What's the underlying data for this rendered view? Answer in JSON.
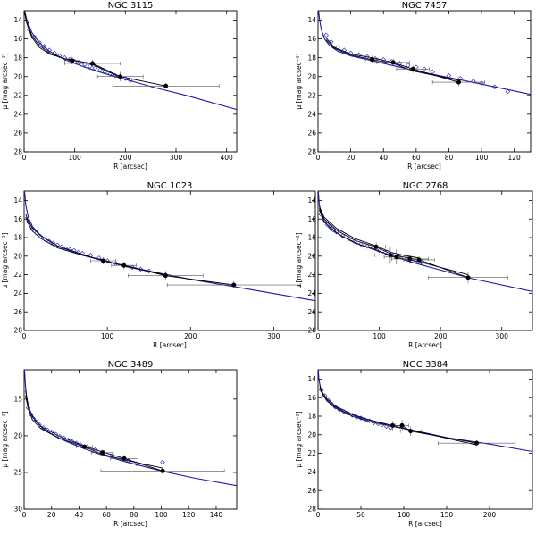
{
  "chart_data": [
    {
      "type": "scatter",
      "title": "NGC 3115",
      "xlabel": "R [arcsec]",
      "ylabel": "μ [mag arcsec⁻²]",
      "xlim": [
        0,
        420
      ],
      "ylim": [
        28,
        13
      ],
      "xticks": [
        0,
        100,
        200,
        300,
        400
      ],
      "yticks": [
        14,
        16,
        18,
        20,
        22,
        24,
        26,
        28
      ],
      "model_curve": {
        "x": [
          1,
          5,
          15,
          30,
          50,
          80,
          120,
          160,
          200,
          260,
          320,
          420
        ],
        "y": [
          13.0,
          13.9,
          15.3,
          16.4,
          17.3,
          18.2,
          19.0,
          19.7,
          20.3,
          21.2,
          22.0,
          23.5
        ]
      },
      "fit_lines": [
        {
          "x": [
            1,
            5,
            15,
            30,
            50,
            80,
            95,
            135,
            190,
            280
          ],
          "y": [
            13.0,
            14.2,
            15.6,
            16.7,
            17.5,
            18.1,
            18.3,
            18.6,
            20.0,
            21.0
          ]
        },
        {
          "x": [
            1,
            5,
            15,
            30,
            50,
            80,
            95,
            135,
            190
          ],
          "y": [
            13.2,
            14.3,
            15.8,
            16.9,
            17.6,
            18.1,
            18.2,
            18.7,
            20.1
          ]
        }
      ],
      "open_points": {
        "x": [
          10,
          20,
          30,
          40,
          50,
          60,
          70,
          80,
          90,
          100,
          110,
          120,
          130,
          140,
          150,
          160,
          170,
          180,
          190,
          200,
          210
        ],
        "y": [
          15.0,
          15.8,
          16.4,
          16.8,
          17.2,
          17.5,
          17.8,
          18.0,
          18.2,
          18.4,
          18.5,
          18.7,
          18.9,
          19.1,
          19.3,
          19.5,
          19.7,
          19.9,
          20.0,
          20.2,
          20.4
        ]
      },
      "filled_points": [
        {
          "x": 95,
          "y": 18.3,
          "xerr": 15,
          "yerr": 0.4
        },
        {
          "x": 135,
          "y": 18.6,
          "xerr": 55,
          "yerr": 0.4
        },
        {
          "x": 190,
          "y": 20.0,
          "xerr": 45,
          "yerr": 0.5
        },
        {
          "x": 280,
          "y": 21.0,
          "xerr": 105,
          "yerr": 0.3
        }
      ]
    },
    {
      "type": "scatter",
      "title": "NGC 7457",
      "xlabel": "R [arcsec]",
      "ylabel": "μ [mag arcsec⁻²]",
      "xlim": [
        0,
        130
      ],
      "ylim": [
        28,
        13
      ],
      "xticks": [
        0,
        20,
        40,
        60,
        80,
        100,
        120
      ],
      "yticks": [
        14,
        16,
        18,
        20,
        22,
        24,
        26,
        28
      ],
      "model_curve": {
        "x": [
          0.3,
          1,
          2,
          4,
          7,
          12,
          20,
          30,
          45,
          60,
          80,
          100,
          130
        ],
        "y": [
          13.0,
          14.0,
          15.0,
          16.0,
          16.7,
          17.3,
          17.8,
          18.2,
          18.8,
          19.4,
          20.1,
          20.8,
          21.9
        ]
      },
      "fit_lines": [
        {
          "x": [
            5,
            10,
            20,
            33,
            46,
            58,
            86
          ],
          "y": [
            15.9,
            16.9,
            17.6,
            18.0,
            18.5,
            19.2,
            20.6
          ]
        },
        {
          "x": [
            5,
            10,
            20,
            33,
            46,
            58,
            86
          ],
          "y": [
            16.1,
            17.0,
            17.7,
            18.2,
            18.6,
            19.4,
            20.4
          ]
        }
      ],
      "open_points": {
        "x": [
          5,
          8,
          12,
          16,
          20,
          25,
          30,
          35,
          40,
          45,
          50,
          55,
          60,
          65,
          70,
          80,
          87,
          95,
          100,
          108,
          116
        ],
        "y": [
          15.6,
          16.3,
          16.9,
          17.2,
          17.5,
          17.7,
          17.9,
          18.1,
          18.2,
          18.4,
          18.6,
          18.8,
          19.0,
          19.2,
          19.5,
          19.9,
          20.2,
          20.5,
          20.7,
          21.1,
          21.6
        ]
      },
      "filled_points": [
        {
          "x": 33,
          "y": 18.2,
          "xerr": 4,
          "yerr": 0.4
        },
        {
          "x": 46,
          "y": 18.5,
          "xerr": 10,
          "yerr": 0.4
        },
        {
          "x": 58,
          "y": 19.2,
          "xerr": 10,
          "yerr": 0.4
        },
        {
          "x": 86,
          "y": 20.6,
          "xerr": 16,
          "yerr": 0.4
        }
      ]
    },
    {
      "type": "scatter",
      "title": "NGC 1023",
      "xlabel": "R [arcsec]",
      "ylabel": "μ [mag arcsec⁻²]",
      "xlim": [
        0,
        350
      ],
      "ylim": [
        28,
        13
      ],
      "xticks": [
        0,
        100,
        200,
        300
      ],
      "yticks": [
        14,
        16,
        18,
        20,
        22,
        24,
        26,
        28
      ],
      "model_curve": {
        "x": [
          0.5,
          2,
          5,
          10,
          20,
          40,
          70,
          100,
          150,
          200,
          260,
          350
        ],
        "y": [
          13.0,
          14.5,
          15.8,
          16.8,
          17.8,
          18.9,
          19.9,
          20.6,
          21.6,
          22.5,
          23.4,
          24.8
        ]
      },
      "fit_lines": [
        {
          "x": [
            2,
            5,
            10,
            20,
            40,
            70,
            95,
            120,
            170,
            252
          ],
          "y": [
            15.5,
            16.2,
            17.0,
            17.8,
            18.9,
            19.8,
            20.5,
            21.0,
            22.1,
            23.1
          ]
        },
        {
          "x": [
            2,
            5,
            10,
            20,
            40,
            70,
            95,
            120,
            170
          ],
          "y": [
            15.8,
            16.5,
            17.3,
            18.1,
            19.1,
            19.9,
            20.4,
            21.1,
            22.0
          ]
        }
      ],
      "open_points": {
        "x": [
          5,
          10,
          15,
          20,
          25,
          30,
          35,
          40,
          45,
          50,
          55,
          60,
          65,
          70,
          80,
          90,
          100,
          110,
          120,
          130,
          140,
          150,
          170
        ],
        "y": [
          16.3,
          17.1,
          17.5,
          17.9,
          18.2,
          18.4,
          18.6,
          18.8,
          19.0,
          19.2,
          19.3,
          19.4,
          19.6,
          19.7,
          19.9,
          20.2,
          20.5,
          20.8,
          21.0,
          21.2,
          21.4,
          21.6,
          22.0
        ]
      },
      "filled_points": [
        {
          "x": 95,
          "y": 20.5,
          "xerr": 15,
          "yerr": 0.4
        },
        {
          "x": 120,
          "y": 21.0,
          "xerr": 15,
          "yerr": 0.4
        },
        {
          "x": 170,
          "y": 22.1,
          "xerr": 45,
          "yerr": 0.5
        },
        {
          "x": 252,
          "y": 23.1,
          "xerr": 80,
          "yerr": 0.4
        }
      ]
    },
    {
      "type": "scatter",
      "title": "NGC 2768",
      "xlabel": "R [arcsec]",
      "ylabel": "μ [mag arcsec⁻²]",
      "xlim": [
        0,
        350
      ],
      "ylim": [
        28,
        13
      ],
      "xticks": [
        0,
        100,
        200,
        300
      ],
      "yticks": [
        14,
        16,
        18,
        20,
        22,
        24,
        26,
        28
      ],
      "model_curve": {
        "x": [
          0.5,
          2,
          5,
          10,
          20,
          40,
          70,
          100,
          150,
          200,
          250,
          350
        ],
        "y": [
          13.0,
          14.4,
          15.4,
          16.2,
          17.0,
          17.9,
          18.8,
          19.5,
          20.6,
          21.5,
          22.4,
          23.8
        ]
      },
      "fit_lines": [
        {
          "x": [
            2,
            10,
            30,
            60,
            95,
            120,
            140,
            165,
            245
          ],
          "y": [
            14.8,
            16.0,
            17.2,
            18.3,
            19.0,
            19.8,
            20.1,
            20.4,
            22.3
          ]
        },
        {
          "x": [
            2,
            10,
            30,
            60,
            95,
            120,
            140,
            165,
            245
          ],
          "y": [
            15.0,
            16.3,
            17.5,
            18.6,
            19.3,
            20.0,
            20.3,
            20.6,
            22.0
          ]
        },
        {
          "x": [
            2,
            10,
            30,
            60,
            95,
            120,
            140,
            165
          ],
          "y": [
            14.6,
            15.8,
            17.0,
            18.1,
            18.9,
            19.6,
            19.9,
            20.2
          ]
        }
      ],
      "open_points": {
        "x": [
          5,
          10,
          15,
          20,
          25,
          30,
          40,
          50,
          60,
          70,
          80,
          90,
          100,
          110,
          120,
          130,
          140,
          150,
          160,
          170
        ],
        "y": [
          15.5,
          16.2,
          16.6,
          16.9,
          17.2,
          17.4,
          17.8,
          18.1,
          18.4,
          18.7,
          18.9,
          19.1,
          19.4,
          19.6,
          19.8,
          20.0,
          20.2,
          20.4,
          20.5,
          20.7
        ]
      },
      "filled_points": [
        {
          "x": 95,
          "y": 19.0,
          "xerr": 15,
          "yerr": 0.5
        },
        {
          "x": 118,
          "y": 19.9,
          "xerr": 25,
          "yerr": 0.9
        },
        {
          "x": 128,
          "y": 20.1,
          "xerr": 20,
          "yerr": 0.8
        },
        {
          "x": 150,
          "y": 20.3,
          "xerr": 30,
          "yerr": 0.5
        },
        {
          "x": 165,
          "y": 20.4,
          "xerr": 25,
          "yerr": 0.4
        },
        {
          "x": 245,
          "y": 22.3,
          "xerr": 65,
          "yerr": 0.6
        }
      ]
    },
    {
      "type": "scatter",
      "title": "NGC 3489",
      "xlabel": "R [arcsec]",
      "ylabel": "μ [mag arcsec⁻²]",
      "xlim": [
        0,
        155
      ],
      "ylim": [
        30,
        11
      ],
      "xticks": [
        0,
        20,
        40,
        60,
        80,
        100,
        120,
        140
      ],
      "yticks": [
        15,
        20,
        25,
        30
      ],
      "model_curve": {
        "x": [
          0.3,
          1,
          2,
          4,
          8,
          15,
          25,
          40,
          55,
          75,
          100,
          125,
          155
        ],
        "y": [
          11.0,
          13.2,
          15.0,
          16.5,
          17.9,
          19.2,
          20.3,
          21.5,
          22.5,
          23.6,
          24.8,
          25.8,
          26.8
        ]
      },
      "fit_lines": [
        {
          "x": [
            1,
            3,
            6,
            12,
            25,
            44,
            57,
            73,
            101
          ],
          "y": [
            13.8,
            15.9,
            17.4,
            18.7,
            20.0,
            21.4,
            22.2,
            23.1,
            24.8
          ]
        },
        {
          "x": [
            1,
            3,
            6,
            12,
            25,
            44,
            57,
            73,
            101
          ],
          "y": [
            14.5,
            16.3,
            17.8,
            19.0,
            20.3,
            21.5,
            22.5,
            23.3,
            24.4
          ]
        }
      ],
      "open_points": {
        "x": [
          3,
          5,
          7,
          9,
          11,
          14,
          17,
          20,
          23,
          26,
          29,
          32,
          35,
          38,
          41,
          46,
          52,
          58,
          64,
          70,
          76,
          82,
          101
        ],
        "y": [
          16.2,
          17.1,
          17.7,
          18.1,
          18.5,
          18.9,
          19.2,
          19.5,
          19.8,
          20.1,
          20.3,
          20.6,
          20.8,
          21.0,
          21.2,
          21.5,
          21.9,
          22.3,
          22.7,
          23.1,
          23.4,
          23.8,
          23.6
        ]
      },
      "filled_points": [
        {
          "x": 44,
          "y": 21.5,
          "xerr": 6,
          "yerr": 0.4
        },
        {
          "x": 57,
          "y": 22.3,
          "xerr": 8,
          "yerr": 0.4
        },
        {
          "x": 73,
          "y": 23.1,
          "xerr": 10,
          "yerr": 0.5
        },
        {
          "x": 101,
          "y": 24.8,
          "xerr": 45,
          "yerr": 0.5
        }
      ]
    },
    {
      "type": "scatter",
      "title": "NGC 3384",
      "xlabel": "R [arcsec]",
      "ylabel": "μ [mag arcsec⁻²]",
      "xlim": [
        0,
        250
      ],
      "ylim": [
        28,
        13
      ],
      "xticks": [
        0,
        50,
        100,
        150,
        200
      ],
      "yticks": [
        14,
        16,
        18,
        20,
        22,
        24,
        26,
        28
      ],
      "model_curve": {
        "x": [
          0.3,
          1,
          3,
          7,
          15,
          30,
          50,
          80,
          110,
          150,
          200,
          250
        ],
        "y": [
          13.0,
          14.0,
          15.0,
          15.9,
          16.7,
          17.5,
          18.2,
          18.9,
          19.5,
          20.3,
          21.0,
          21.8
        ]
      },
      "fit_lines": [
        {
          "x": [
            2,
            5,
            10,
            20,
            40,
            60,
            87,
            98,
            108,
            185
          ],
          "y": [
            14.7,
            15.4,
            16.1,
            16.9,
            17.8,
            18.4,
            19.0,
            19.0,
            19.6,
            20.9
          ]
        },
        {
          "x": [
            2,
            5,
            10,
            20,
            40,
            60,
            87,
            98,
            108,
            185
          ],
          "y": [
            14.9,
            15.6,
            16.3,
            17.1,
            18.0,
            18.6,
            19.1,
            19.3,
            19.5,
            21.1
          ]
        }
      ],
      "open_points": {
        "x": [
          4,
          8,
          12,
          16,
          20,
          25,
          30,
          35,
          40,
          45,
          50,
          55,
          60,
          65,
          70,
          75,
          80,
          85
        ],
        "y": [
          15.2,
          15.8,
          16.3,
          16.7,
          17.0,
          17.3,
          17.5,
          17.7,
          17.9,
          18.1,
          18.2,
          18.4,
          18.5,
          18.7,
          18.8,
          18.9,
          19.1,
          19.2
        ]
      },
      "filled_points": [
        {
          "x": 87,
          "y": 19.0,
          "xerr": 6,
          "yerr": 0.5
        },
        {
          "x": 98,
          "y": 19.0,
          "xerr": 8,
          "yerr": 0.6
        },
        {
          "x": 108,
          "y": 19.6,
          "xerr": 12,
          "yerr": 0.5
        },
        {
          "x": 185,
          "y": 20.9,
          "xerr": 45,
          "yerr": 0.3
        }
      ]
    }
  ]
}
